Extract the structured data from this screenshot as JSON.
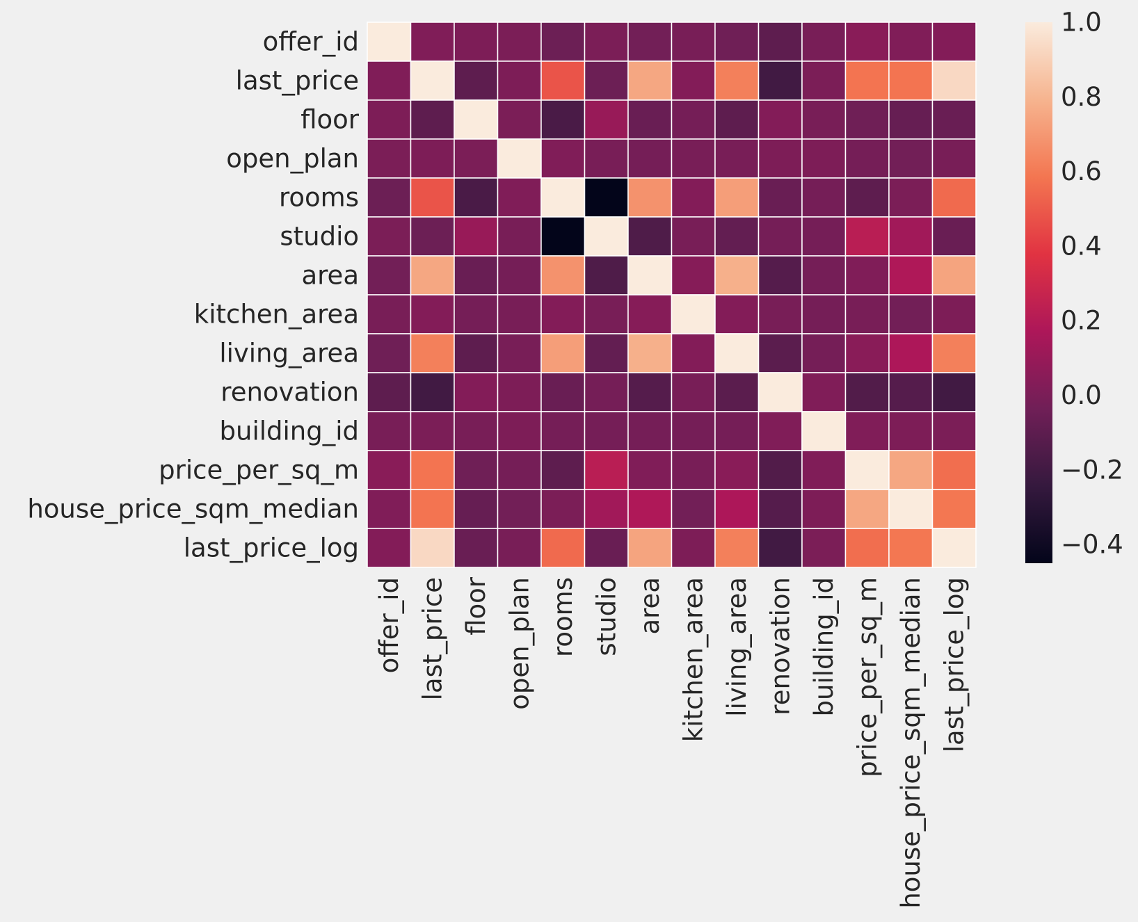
{
  "chart_data": {
    "type": "heatmap",
    "title": "",
    "xlabel": "",
    "ylabel": "",
    "grid": false,
    "legend": "colorbar-right",
    "categories": [
      "offer_id",
      "last_price",
      "floor",
      "open_plan",
      "rooms",
      "studio",
      "area",
      "kitchen_area",
      "living_area",
      "renovation",
      "building_id",
      "price_per_sq_m",
      "house_price_sqm_median",
      "last_price_log"
    ],
    "values": [
      [
        1.0,
        0.02,
        0.01,
        0.0,
        -0.05,
        0.0,
        -0.03,
        -0.01,
        -0.04,
        -0.1,
        -0.01,
        0.05,
        0.02,
        0.03
      ],
      [
        0.02,
        1.0,
        -0.1,
        0.01,
        0.48,
        -0.05,
        0.75,
        0.03,
        0.62,
        -0.2,
        0.0,
        0.58,
        0.58,
        0.93
      ],
      [
        0.01,
        -0.1,
        1.0,
        0.0,
        -0.17,
        0.1,
        -0.06,
        -0.02,
        -0.1,
        0.03,
        -0.01,
        -0.04,
        -0.07,
        -0.06
      ],
      [
        0.0,
        0.01,
        0.0,
        1.0,
        0.02,
        -0.01,
        -0.02,
        -0.01,
        -0.01,
        0.01,
        0.01,
        -0.02,
        -0.03,
        -0.01
      ],
      [
        -0.05,
        0.48,
        -0.17,
        0.02,
        1.0,
        -0.45,
        0.68,
        0.03,
        0.72,
        -0.06,
        -0.02,
        -0.1,
        0.0,
        0.55
      ],
      [
        0.0,
        -0.05,
        0.1,
        -0.01,
        -0.45,
        1.0,
        -0.15,
        -0.01,
        -0.08,
        -0.02,
        -0.02,
        0.22,
        0.13,
        -0.06
      ],
      [
        -0.03,
        0.75,
        -0.06,
        -0.02,
        0.68,
        -0.15,
        1.0,
        0.04,
        0.78,
        -0.13,
        -0.02,
        0.02,
        0.18,
        0.74
      ],
      [
        -0.01,
        0.03,
        -0.02,
        -0.01,
        0.03,
        -0.01,
        0.04,
        1.0,
        0.03,
        -0.01,
        -0.02,
        -0.01,
        -0.03,
        0.01
      ],
      [
        -0.04,
        0.62,
        -0.1,
        -0.01,
        0.72,
        -0.08,
        0.78,
        0.03,
        1.0,
        -0.11,
        -0.02,
        0.05,
        0.17,
        0.62
      ],
      [
        -0.1,
        -0.2,
        0.03,
        0.01,
        -0.06,
        -0.02,
        -0.13,
        -0.01,
        -0.11,
        1.0,
        0.02,
        -0.14,
        -0.13,
        -0.2
      ],
      [
        -0.01,
        0.0,
        -0.01,
        0.01,
        -0.02,
        -0.02,
        -0.02,
        -0.02,
        -0.02,
        0.02,
        1.0,
        0.02,
        0.01,
        0.0
      ],
      [
        0.05,
        0.58,
        -0.04,
        -0.02,
        -0.1,
        0.22,
        0.02,
        -0.01,
        0.05,
        -0.14,
        0.02,
        1.0,
        0.75,
        0.56
      ],
      [
        0.02,
        0.58,
        -0.07,
        -0.03,
        0.0,
        0.13,
        0.18,
        -0.03,
        0.17,
        -0.13,
        0.01,
        0.75,
        1.0,
        0.59
      ],
      [
        0.03,
        0.93,
        -0.06,
        -0.01,
        0.55,
        -0.06,
        0.74,
        0.01,
        0.62,
        -0.2,
        0.0,
        0.56,
        0.59,
        1.0
      ]
    ],
    "colorbar": {
      "min": -0.45,
      "max": 1.0,
      "ticks": [
        1.0,
        0.8,
        0.6,
        0.4,
        0.2,
        0.0,
        -0.2,
        -0.4
      ],
      "tick_labels": [
        "1.0",
        "0.8",
        "0.6",
        "0.4",
        "0.2",
        "0.0",
        "−0.2",
        "−0.4"
      ]
    },
    "colormap": "rocket",
    "colormap_stops": [
      "#03051a",
      "#35193e",
      "#701f57",
      "#ad1759",
      "#e13342",
      "#f37651",
      "#f6b48f",
      "#faebdd"
    ]
  }
}
